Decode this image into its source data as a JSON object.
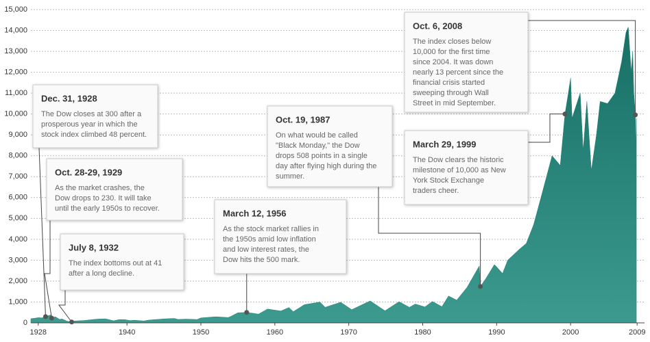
{
  "chart_data": {
    "type": "area",
    "x": [
      1927.0,
      1927.5,
      1928.0,
      1928.5,
      1928.99,
      1929.7,
      1929.82,
      1930.3,
      1930.9,
      1931.2,
      1931.9,
      1932.52,
      1932.7,
      1933.5,
      1934.0,
      1935.0,
      1936.0,
      1937.1,
      1938.2,
      1938.9,
      1939.7,
      1940.4,
      1941.0,
      1942.3,
      1943.0,
      1945.0,
      1946.4,
      1946.9,
      1948.0,
      1949.5,
      1950.0,
      1952.0,
      1953.7,
      1954.0,
      1955.0,
      1956.19,
      1957.8,
      1959.0,
      1960.8,
      1961.9,
      1962.5,
      1964.0,
      1966.1,
      1966.8,
      1968.9,
      1970.4,
      1972.9,
      1974.9,
      1976.8,
      1978.2,
      1979.0,
      1980.3,
      1981.3,
      1982.6,
      1983.5,
      1984.6,
      1986.0,
      1987.65,
      1987.8,
      1988.5,
      1989.7,
      1990.8,
      1991.5,
      1993.0,
      1994.0,
      1995.0,
      1996.0,
      1997.5,
      1998.6,
      1999.24,
      1999.7,
      2000.0,
      2000.2,
      2001.3,
      2001.7,
      2002.2,
      2002.8,
      2003.5,
      2004.0,
      2005.0,
      2006.0,
      2006.9,
      2007.5,
      2007.8,
      2008.2,
      2008.4,
      2008.55,
      2008.76,
      2008.8,
      2008.9
    ],
    "values": [
      200,
      220,
      250,
      240,
      300,
      381,
      230,
      290,
      165,
      190,
      78,
      41,
      79,
      100,
      105,
      145,
      180,
      194,
      99,
      155,
      155,
      112,
      125,
      93,
      135,
      190,
      212,
      163,
      180,
      162,
      235,
      290,
      255,
      300,
      480,
      500,
      420,
      660,
      565,
      734,
      536,
      870,
      995,
      744,
      985,
      631,
      1051,
      578,
      1014,
      742,
      900,
      759,
      1024,
      777,
      1287,
      1087,
      1700,
      2722,
      1739,
      2100,
      2791,
      2365,
      3000,
      3500,
      3800,
      4700,
      6000,
      8000,
      7539,
      10000,
      11000,
      11723,
      9800,
      11000,
      8236,
      10600,
      7286,
      9000,
      10600,
      10500,
      11000,
      12500,
      13900,
      14164,
      12000,
      13000,
      11000,
      9956,
      8500,
      9800
    ],
    "color": "#1f7f74",
    "xlim": [
      1927,
      2010
    ],
    "xticks": [
      1928,
      1940,
      1950,
      1960,
      1970,
      1980,
      1990,
      2000,
      2009
    ],
    "ylim": [
      0,
      15000
    ],
    "yticks": [
      0,
      {
        "value": 1000,
        "label": "1,000"
      },
      {
        "value": 2000,
        "label": "2,000"
      },
      {
        "value": 3000,
        "label": "3,000"
      },
      {
        "value": 4000,
        "label": "4,000"
      },
      {
        "value": 5000,
        "label": "5,000"
      },
      {
        "value": 6000,
        "label": "6,000"
      },
      {
        "value": 7000,
        "label": "7,000"
      },
      {
        "value": 8000,
        "label": "8,000"
      },
      {
        "value": 9000,
        "label": "9,000"
      },
      {
        "value": 10000,
        "label": "10,000"
      },
      {
        "value": 11000,
        "label": "11,000"
      },
      {
        "value": 12000,
        "label": "12,000"
      },
      {
        "value": 13000,
        "label": "13,000"
      },
      {
        "value": 14000,
        "label": "14,000"
      },
      {
        "value": 15000,
        "label": "15,000"
      }
    ],
    "grid": true,
    "annotations": [
      {
        "title": "Dec. 31, 1928",
        "x": 1928.99,
        "y": 300,
        "lines": [
          "The Dow closes at 300 after a",
          "prosperous year in which the",
          "stock index climbed 48 percent."
        ]
      },
      {
        "title": "Oct. 28-29, 1929",
        "x": 1929.82,
        "y": 230,
        "lines": [
          "As the market crashes, the",
          "Dow drops to 230. It will take",
          "until the early 1950s to recover."
        ]
      },
      {
        "title": "July 8, 1932",
        "x": 1932.52,
        "y": 41,
        "lines": [
          "The index bottoms out at 41",
          "after a long decline."
        ]
      },
      {
        "title": "March 12, 1956",
        "x": 1956.19,
        "y": 500,
        "lines": [
          "As the stock market rallies in",
          "the 1950s amid low inflation",
          "and low interest rates, the",
          "Dow hits the 500 mark."
        ]
      },
      {
        "title": "Oct. 19, 1987",
        "x": 1987.8,
        "y": 1739,
        "lines": [
          "On what would be called",
          "\"Black Monday,\" the Dow",
          "drops 508 points in a single",
          "day after flying high during the",
          "summer."
        ]
      },
      {
        "title": "March 29, 1999",
        "x": 1999.24,
        "y": 10000,
        "lines": [
          "The Dow clears the historic",
          "milestone of 10,000 as New",
          "York Stock Exchange",
          "traders cheer."
        ]
      },
      {
        "title": "Oct. 6, 2008",
        "x": 2008.76,
        "y": 9956,
        "lines": [
          "The index closes below",
          "10,000 for the first time",
          "since 2004. It was down",
          "nearly 13 percent since the",
          "financial crisis started",
          "sweeping through Wall",
          "Street in mid September."
        ]
      }
    ]
  }
}
